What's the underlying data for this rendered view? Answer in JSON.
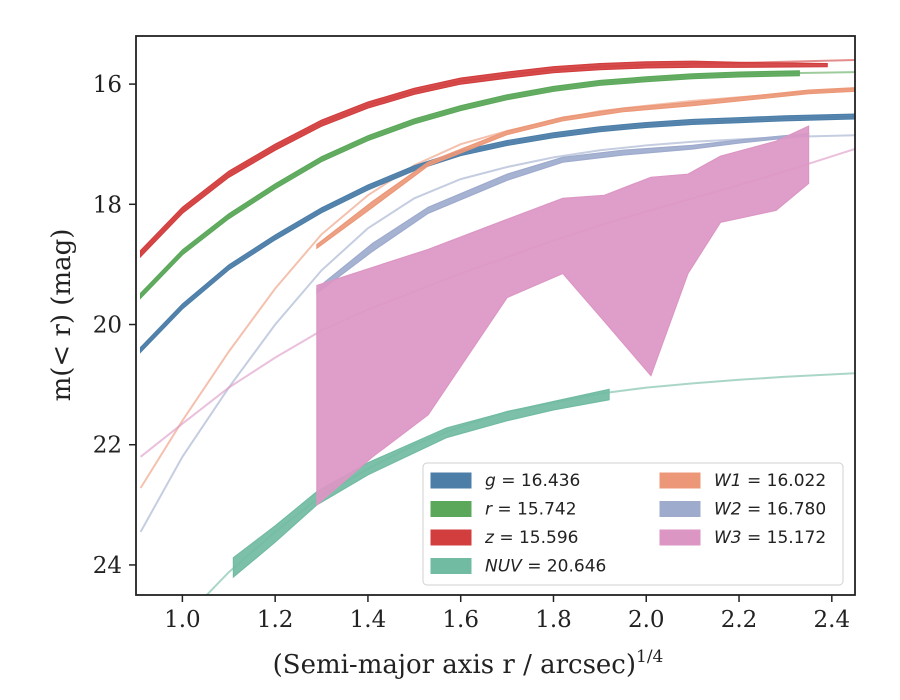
{
  "chart_data": {
    "type": "line",
    "xlabel": "(Semi-major axis r / arcsec)",
    "xlabel_exponent": "1/4",
    "ylabel": "m(< r) (mag)",
    "xlim": [
      0.9,
      2.45
    ],
    "ylim": [
      24.5,
      15.2
    ],
    "y_inverted": true,
    "xticks": [
      "1.0",
      "1.2",
      "1.4",
      "1.6",
      "1.8",
      "2.0",
      "2.2",
      "2.4"
    ],
    "yticks": [
      "16",
      "18",
      "20",
      "22",
      "24"
    ],
    "grid": false,
    "legend_position": "lower-right",
    "series": [
      {
        "name": "g = 16.436",
        "legend_var": "g",
        "legend_val": "= 16.436",
        "color": "#4c7ea8",
        "model": [
          [
            0.91,
            20.42
          ],
          [
            1.0,
            19.7
          ],
          [
            1.1,
            19.05
          ],
          [
            1.2,
            18.55
          ],
          [
            1.3,
            18.1
          ],
          [
            1.4,
            17.72
          ],
          [
            1.5,
            17.4
          ],
          [
            1.6,
            17.15
          ],
          [
            1.7,
            16.98
          ],
          [
            1.8,
            16.85
          ],
          [
            1.9,
            16.75
          ],
          [
            2.0,
            16.68
          ],
          [
            2.1,
            16.63
          ],
          [
            2.2,
            16.6
          ],
          [
            2.3,
            16.57
          ],
          [
            2.45,
            16.54
          ]
        ],
        "band_upper": [
          [
            0.91,
            20.38
          ],
          [
            1.0,
            19.66
          ],
          [
            1.1,
            19.01
          ],
          [
            1.2,
            18.51
          ],
          [
            1.3,
            18.06
          ],
          [
            1.4,
            17.68
          ],
          [
            1.5,
            17.36
          ],
          [
            1.6,
            17.11
          ],
          [
            1.7,
            16.94
          ],
          [
            1.8,
            16.81
          ],
          [
            1.9,
            16.71
          ],
          [
            2.0,
            16.64
          ],
          [
            2.1,
            16.59
          ],
          [
            2.2,
            16.56
          ],
          [
            2.3,
            16.53
          ],
          [
            2.45,
            16.5
          ]
        ],
        "band_lower": [
          [
            0.91,
            20.46
          ],
          [
            1.0,
            19.74
          ],
          [
            1.1,
            19.09
          ],
          [
            1.2,
            18.59
          ],
          [
            1.3,
            18.14
          ],
          [
            1.4,
            17.76
          ],
          [
            1.5,
            17.44
          ],
          [
            1.6,
            17.19
          ],
          [
            1.7,
            17.02
          ],
          [
            1.8,
            16.89
          ],
          [
            1.9,
            16.79
          ],
          [
            2.0,
            16.72
          ],
          [
            2.1,
            16.67
          ],
          [
            2.2,
            16.64
          ],
          [
            2.3,
            16.61
          ],
          [
            2.45,
            16.58
          ]
        ]
      },
      {
        "name": "r = 15.742",
        "legend_var": "r",
        "legend_val": "= 15.742",
        "color": "#5ba85a",
        "model": [
          [
            0.91,
            19.52
          ],
          [
            1.0,
            18.8
          ],
          [
            1.1,
            18.2
          ],
          [
            1.2,
            17.7
          ],
          [
            1.3,
            17.25
          ],
          [
            1.4,
            16.9
          ],
          [
            1.5,
            16.62
          ],
          [
            1.6,
            16.4
          ],
          [
            1.7,
            16.22
          ],
          [
            1.8,
            16.08
          ],
          [
            1.9,
            15.98
          ],
          [
            2.0,
            15.92
          ],
          [
            2.1,
            15.87
          ],
          [
            2.2,
            15.84
          ],
          [
            2.3,
            15.82
          ],
          [
            2.45,
            15.8
          ]
        ],
        "band_upper": [
          [
            0.91,
            19.48
          ],
          [
            1.0,
            18.76
          ],
          [
            1.1,
            18.16
          ],
          [
            1.2,
            17.66
          ],
          [
            1.3,
            17.21
          ],
          [
            1.4,
            16.86
          ],
          [
            1.5,
            16.58
          ],
          [
            1.6,
            16.36
          ],
          [
            1.7,
            16.18
          ],
          [
            1.8,
            16.04
          ],
          [
            1.9,
            15.94
          ],
          [
            2.0,
            15.88
          ],
          [
            2.1,
            15.83
          ],
          [
            2.2,
            15.8
          ],
          [
            2.33,
            15.78
          ]
        ],
        "band_lower": [
          [
            0.91,
            19.56
          ],
          [
            1.0,
            18.84
          ],
          [
            1.1,
            18.24
          ],
          [
            1.2,
            17.74
          ],
          [
            1.3,
            17.29
          ],
          [
            1.4,
            16.94
          ],
          [
            1.5,
            16.66
          ],
          [
            1.6,
            16.44
          ],
          [
            1.7,
            16.26
          ],
          [
            1.8,
            16.12
          ],
          [
            1.9,
            16.02
          ],
          [
            2.0,
            15.96
          ],
          [
            2.1,
            15.91
          ],
          [
            2.2,
            15.88
          ],
          [
            2.33,
            15.86
          ]
        ]
      },
      {
        "name": "z = 15.596",
        "legend_var": "z",
        "legend_val": "= 15.596",
        "color": "#d23e3e",
        "model": [
          [
            0.91,
            18.82
          ],
          [
            1.0,
            18.1
          ],
          [
            1.1,
            17.5
          ],
          [
            1.2,
            17.05
          ],
          [
            1.3,
            16.65
          ],
          [
            1.4,
            16.35
          ],
          [
            1.5,
            16.12
          ],
          [
            1.6,
            15.95
          ],
          [
            1.7,
            15.85
          ],
          [
            1.8,
            15.76
          ],
          [
            1.9,
            15.71
          ],
          [
            2.0,
            15.68
          ],
          [
            2.1,
            15.66
          ],
          [
            2.2,
            15.65
          ],
          [
            2.3,
            15.63
          ],
          [
            2.45,
            15.6
          ]
        ],
        "band_upper": [
          [
            0.91,
            18.77
          ],
          [
            1.0,
            18.05
          ],
          [
            1.1,
            17.45
          ],
          [
            1.2,
            17.0
          ],
          [
            1.3,
            16.6
          ],
          [
            1.4,
            16.3
          ],
          [
            1.5,
            16.07
          ],
          [
            1.6,
            15.9
          ],
          [
            1.7,
            15.8
          ],
          [
            1.8,
            15.71
          ],
          [
            1.9,
            15.66
          ],
          [
            2.0,
            15.63
          ],
          [
            2.1,
            15.62
          ],
          [
            2.2,
            15.64
          ],
          [
            2.39,
            15.66
          ]
        ],
        "band_lower": [
          [
            0.91,
            18.87
          ],
          [
            1.0,
            18.15
          ],
          [
            1.1,
            17.55
          ],
          [
            1.2,
            17.1
          ],
          [
            1.3,
            16.7
          ],
          [
            1.4,
            16.4
          ],
          [
            1.5,
            16.17
          ],
          [
            1.6,
            16.0
          ],
          [
            1.7,
            15.9
          ],
          [
            1.8,
            15.81
          ],
          [
            1.9,
            15.76
          ],
          [
            2.0,
            15.73
          ],
          [
            2.1,
            15.72
          ],
          [
            2.2,
            15.72
          ],
          [
            2.39,
            15.71
          ]
        ]
      },
      {
        "name": "NUV = 20.646",
        "legend_var": "NUV",
        "legend_val": "= 20.646",
        "color": "#72bba3",
        "model": [
          [
            1.04,
            24.6
          ],
          [
            1.1,
            24.12
          ],
          [
            1.2,
            23.45
          ],
          [
            1.3,
            22.85
          ],
          [
            1.4,
            22.4
          ],
          [
            1.5,
            22.0
          ],
          [
            1.6,
            21.7
          ],
          [
            1.7,
            21.45
          ],
          [
            1.8,
            21.3
          ],
          [
            1.9,
            21.15
          ],
          [
            2.0,
            21.05
          ],
          [
            2.1,
            20.98
          ],
          [
            2.2,
            20.92
          ],
          [
            2.3,
            20.87
          ],
          [
            2.45,
            20.81
          ]
        ],
        "band_upper": [
          [
            1.11,
            23.88
          ],
          [
            1.2,
            23.35
          ],
          [
            1.29,
            22.78
          ],
          [
            1.4,
            22.3
          ],
          [
            1.57,
            21.72
          ],
          [
            1.7,
            21.45
          ],
          [
            1.8,
            21.28
          ],
          [
            1.92,
            21.08
          ]
        ],
        "band_lower": [
          [
            1.11,
            24.2
          ],
          [
            1.2,
            23.62
          ],
          [
            1.29,
            23.0
          ],
          [
            1.4,
            22.5
          ],
          [
            1.57,
            21.88
          ],
          [
            1.7,
            21.6
          ],
          [
            1.8,
            21.42
          ],
          [
            1.92,
            21.25
          ]
        ]
      },
      {
        "name": "W1 = 16.022",
        "legend_var": "W1",
        "legend_val": "= 16.022",
        "color": "#ec9878",
        "model": [
          [
            0.91,
            22.72
          ],
          [
            1.0,
            21.6
          ],
          [
            1.1,
            20.45
          ],
          [
            1.2,
            19.4
          ],
          [
            1.3,
            18.5
          ],
          [
            1.4,
            17.85
          ],
          [
            1.5,
            17.35
          ],
          [
            1.6,
            17.0
          ],
          [
            1.7,
            16.78
          ],
          [
            1.8,
            16.6
          ],
          [
            1.9,
            16.45
          ],
          [
            2.0,
            16.36
          ],
          [
            2.1,
            16.28
          ],
          [
            2.2,
            16.22
          ],
          [
            2.3,
            16.16
          ],
          [
            2.45,
            16.08
          ]
        ],
        "band_upper": [
          [
            1.29,
            18.67
          ],
          [
            1.41,
            17.95
          ],
          [
            1.53,
            17.3
          ],
          [
            1.7,
            16.78
          ],
          [
            1.82,
            16.55
          ],
          [
            1.95,
            16.4
          ],
          [
            2.1,
            16.3
          ],
          [
            2.2,
            16.22
          ],
          [
            2.35,
            16.1
          ],
          [
            2.45,
            16.06
          ]
        ],
        "band_lower": [
          [
            1.29,
            18.73
          ],
          [
            1.41,
            18.05
          ],
          [
            1.53,
            17.36
          ],
          [
            1.7,
            16.84
          ],
          [
            1.82,
            16.61
          ],
          [
            1.95,
            16.46
          ],
          [
            2.1,
            16.36
          ],
          [
            2.2,
            16.28
          ],
          [
            2.35,
            16.16
          ],
          [
            2.45,
            16.12
          ]
        ]
      },
      {
        "name": "W2 = 16.780",
        "legend_var": "W2",
        "legend_val": "= 16.780",
        "color": "#9eabcd",
        "model": [
          [
            0.91,
            23.45
          ],
          [
            1.0,
            22.2
          ],
          [
            1.1,
            21.05
          ],
          [
            1.2,
            20.0
          ],
          [
            1.3,
            19.1
          ],
          [
            1.4,
            18.4
          ],
          [
            1.5,
            17.9
          ],
          [
            1.6,
            17.58
          ],
          [
            1.7,
            17.38
          ],
          [
            1.8,
            17.22
          ],
          [
            1.9,
            17.1
          ],
          [
            2.0,
            17.02
          ],
          [
            2.1,
            16.96
          ],
          [
            2.2,
            16.92
          ],
          [
            2.3,
            16.88
          ],
          [
            2.45,
            16.85
          ]
        ],
        "band_upper": [
          [
            1.29,
            19.4
          ],
          [
            1.41,
            18.65
          ],
          [
            1.53,
            18.05
          ],
          [
            1.7,
            17.5
          ],
          [
            1.82,
            17.22
          ],
          [
            1.95,
            17.1
          ],
          [
            2.1,
            17.02
          ],
          [
            2.2,
            16.93
          ],
          [
            2.35,
            16.82
          ]
        ],
        "band_lower": [
          [
            1.29,
            19.48
          ],
          [
            1.41,
            18.78
          ],
          [
            1.53,
            18.15
          ],
          [
            1.7,
            17.6
          ],
          [
            1.82,
            17.3
          ],
          [
            1.95,
            17.18
          ],
          [
            2.1,
            17.08
          ],
          [
            2.2,
            16.98
          ],
          [
            2.35,
            16.86
          ]
        ]
      },
      {
        "name": "W3 = 15.172",
        "legend_var": "W3",
        "legend_val": "= 15.172",
        "color": "#dc96c4",
        "model": [
          [
            0.91,
            22.2
          ],
          [
            1.0,
            21.65
          ],
          [
            1.1,
            21.05
          ],
          [
            1.2,
            20.55
          ],
          [
            1.3,
            20.1
          ],
          [
            1.4,
            19.75
          ],
          [
            1.5,
            19.45
          ],
          [
            1.6,
            19.15
          ],
          [
            1.7,
            18.88
          ],
          [
            1.8,
            18.6
          ],
          [
            1.9,
            18.35
          ],
          [
            2.0,
            18.12
          ],
          [
            2.1,
            17.9
          ],
          [
            2.2,
            17.68
          ],
          [
            2.3,
            17.45
          ],
          [
            2.45,
            17.08
          ]
        ],
        "band_upper": [
          [
            1.29,
            19.35
          ],
          [
            1.41,
            19.05
          ],
          [
            1.53,
            18.75
          ],
          [
            1.7,
            18.25
          ],
          [
            1.82,
            17.9
          ],
          [
            1.91,
            17.85
          ],
          [
            2.01,
            17.55
          ],
          [
            2.09,
            17.5
          ],
          [
            2.16,
            17.2
          ],
          [
            2.28,
            16.95
          ],
          [
            2.35,
            16.7
          ]
        ],
        "band_lower": [
          [
            1.29,
            23.0
          ],
          [
            1.41,
            22.2
          ],
          [
            1.53,
            21.5
          ],
          [
            1.7,
            19.55
          ],
          [
            1.82,
            19.15
          ],
          [
            1.91,
            19.95
          ],
          [
            2.01,
            20.85
          ],
          [
            2.09,
            19.15
          ],
          [
            2.16,
            18.3
          ],
          [
            2.28,
            18.1
          ],
          [
            2.35,
            17.65
          ]
        ]
      }
    ]
  }
}
